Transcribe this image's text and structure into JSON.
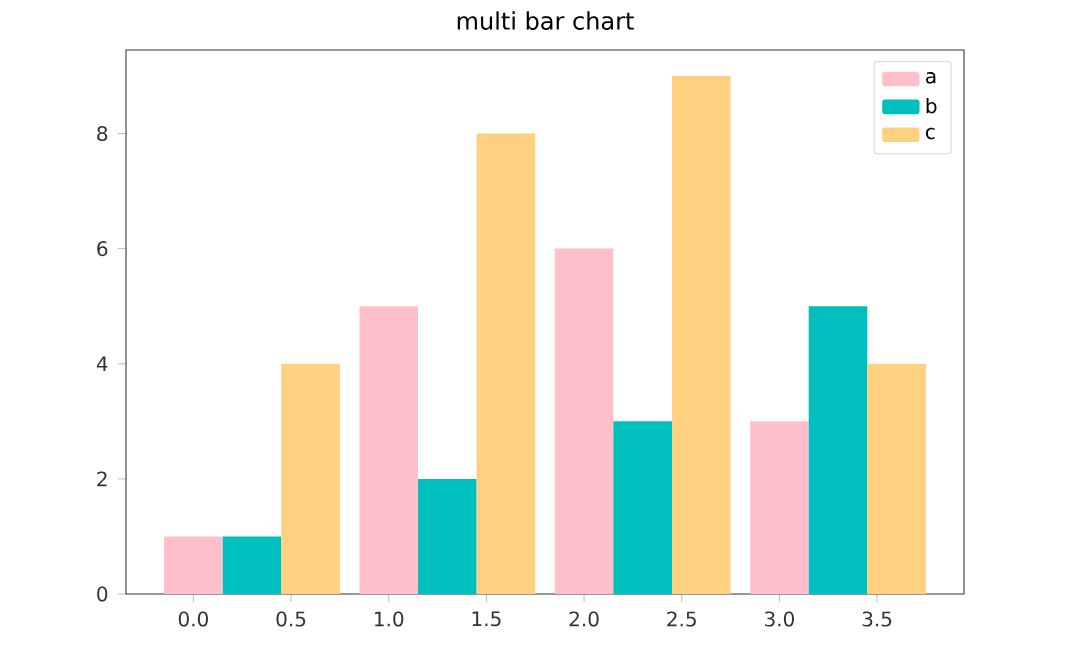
{
  "chart_data": {
    "type": "bar",
    "title": "multi bar chart",
    "series": [
      {
        "name": "a",
        "color": "#ffc0cb",
        "x": [
          0,
          1,
          2,
          3
        ],
        "values": [
          1,
          5,
          6,
          3
        ]
      },
      {
        "name": "b",
        "color": "#00bfbf",
        "x": [
          0.3,
          1.3,
          2.3,
          3.3
        ],
        "values": [
          1,
          2,
          3,
          5
        ]
      },
      {
        "name": "c",
        "color": "#ffd080",
        "x": [
          0.6,
          1.6,
          2.6,
          3.6
        ],
        "values": [
          4,
          8,
          9,
          4
        ]
      }
    ],
    "xlim": [
      -0.345,
      3.945
    ],
    "ylim": [
      0,
      9.45
    ],
    "xticks": [
      {
        "value": 0,
        "label": "0.0"
      },
      {
        "value": 0.5,
        "label": "0.5"
      },
      {
        "value": 1,
        "label": "1.0"
      },
      {
        "value": 1.5,
        "label": "1.5"
      },
      {
        "value": 2,
        "label": "2.0"
      },
      {
        "value": 2.5,
        "label": "2.5"
      },
      {
        "value": 3,
        "label": "3.0"
      },
      {
        "value": 3.5,
        "label": "3.5"
      }
    ],
    "yticks": [
      0,
      2,
      4,
      6,
      8
    ],
    "legend": "top right",
    "grid": false
  }
}
